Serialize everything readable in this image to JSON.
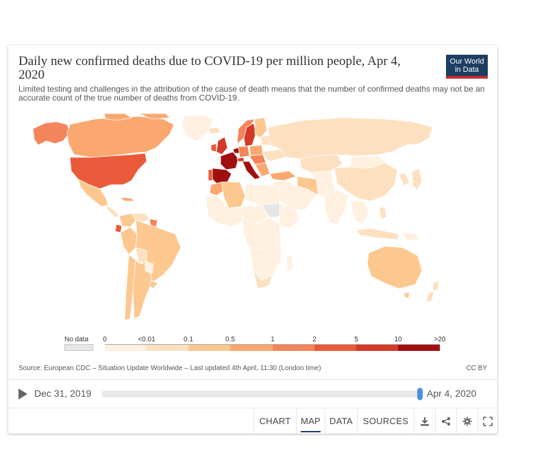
{
  "title": "Daily new confirmed deaths due to COVID-19 per million people, Apr 4, 2020",
  "subtitle": "Limited testing and challenges in the attribution of the cause of death means that the number of confirmed deaths may not be an accurate count of the true number of deaths from COVID-19.",
  "logo": {
    "line1": "Our World",
    "line2": "in Data"
  },
  "legend": {
    "no_data": "No data",
    "ticks": [
      "0",
      "<0.01",
      "0.1",
      "0.5",
      "1",
      "2",
      "5",
      "10",
      ">20"
    ],
    "colors": [
      "#fff0e0",
      "#fde0c0",
      "#fcc890",
      "#fba870",
      "#f4845a",
      "#ea5a3a",
      "#d53a28",
      "#a01010"
    ],
    "no_data_color": "#e6e6e6"
  },
  "source": "Source: European CDC – Situation Update Worldwide – Last updated 4th April, 11:30 (London time)",
  "license": "CC BY",
  "timeline": {
    "start": "Dec 31, 2019",
    "end": "Apr 4, 2020",
    "position": 1.0
  },
  "tabs": [
    "CHART",
    "MAP",
    "DATA",
    "SOURCES"
  ],
  "active_tab": "MAP",
  "icons": [
    "download-icon",
    "share-icon",
    "settings-icon",
    "fullscreen-icon"
  ],
  "map_colors": {
    "ocean": "#ffffff",
    "border": "#ffffff"
  }
}
